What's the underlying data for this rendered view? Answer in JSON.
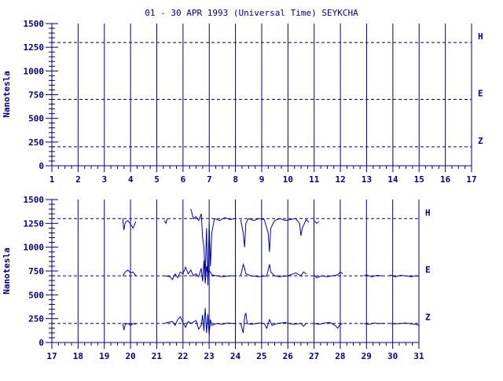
{
  "chart_data": [
    {
      "type": "line",
      "title": "01 - 30 APR 1993 (Universal Time) SEYKCHA",
      "ylabel": "Nanotesla",
      "xlim": [
        1,
        17
      ],
      "ylim": [
        0,
        1500
      ],
      "x_ticks": [
        "1",
        "2",
        "3",
        "4",
        "5",
        "6",
        "7",
        "8",
        "9",
        "10",
        "11",
        "12",
        "13",
        "14",
        "15",
        "16",
        "17"
      ],
      "y_ticks": [
        "0",
        "250",
        "500",
        "750",
        "1000",
        "1250",
        "1500"
      ],
      "baselines": [
        {
          "name": "H",
          "value": 1300
        },
        {
          "name": "E",
          "value": 700
        },
        {
          "name": "Z",
          "value": 200
        }
      ],
      "grid": true,
      "series": []
    },
    {
      "type": "line",
      "ylabel": "Nanotesla",
      "xlim": [
        17,
        31
      ],
      "ylim": [
        0,
        1500
      ],
      "x_ticks": [
        "17",
        "18",
        "19",
        "20",
        "21",
        "22",
        "23",
        "24",
        "25",
        "26",
        "27",
        "28",
        "29",
        "30",
        "31"
      ],
      "y_ticks": [
        "0",
        "250",
        "500",
        "750",
        "1000",
        "1250",
        "1500"
      ],
      "baselines": [
        {
          "name": "H",
          "value": 1300
        },
        {
          "name": "E",
          "value": 700
        },
        {
          "name": "Z",
          "value": 200
        }
      ],
      "grid": true,
      "series": [
        {
          "name": "H",
          "segments": [
            [
              [
                19.7,
                1300
              ],
              [
                19.75,
                1180
              ],
              [
                19.8,
                1260
              ],
              [
                19.9,
                1280
              ],
              [
                20.0,
                1240
              ],
              [
                20.1,
                1200
              ],
              [
                20.2,
                1270
              ]
            ],
            [
              [
                21.3,
                1280
              ],
              [
                21.35,
                1250
              ],
              [
                21.4,
                1300
              ]
            ],
            [
              [
                22.3,
                1400
              ],
              [
                22.4,
                1300
              ],
              [
                22.5,
                1320
              ],
              [
                22.6,
                1280
              ],
              [
                22.7,
                1350
              ],
              [
                22.75,
                1100
              ],
              [
                22.8,
                1000
              ],
              [
                22.85,
                700
              ],
              [
                22.9,
                1200
              ],
              [
                22.95,
                600
              ],
              [
                23.0,
                1250
              ],
              [
                23.05,
                800
              ],
              [
                23.1,
                1150
              ],
              [
                23.2,
                1300
              ],
              [
                23.4,
                1280
              ],
              [
                23.6,
                1310
              ],
              [
                23.8,
                1290
              ],
              [
                24.0,
                1300
              ]
            ],
            [
              [
                24.2,
                1290
              ],
              [
                24.3,
                1150
              ],
              [
                24.35,
                1000
              ],
              [
                24.4,
                1250
              ],
              [
                24.5,
                1300
              ],
              [
                24.7,
                1280
              ],
              [
                24.9,
                1300
              ],
              [
                25.1,
                1290
              ],
              [
                25.25,
                1150
              ],
              [
                25.3,
                950
              ],
              [
                25.35,
                1200
              ],
              [
                25.5,
                1280
              ],
              [
                25.7,
                1300
              ],
              [
                25.9,
                1280
              ],
              [
                26.1,
                1290
              ],
              [
                26.3,
                1300
              ],
              [
                26.45,
                1250
              ],
              [
                26.5,
                1120
              ],
              [
                26.55,
                1200
              ],
              [
                26.7,
                1290
              ],
              [
                26.8,
                1260
              ]
            ],
            [
              [
                27.0,
                1280
              ],
              [
                27.1,
                1250
              ],
              [
                27.2,
                1270
              ]
            ]
          ]
        },
        {
          "name": "E",
          "segments": [
            [
              [
                19.7,
                700
              ],
              [
                19.75,
                720
              ],
              [
                19.8,
                740
              ],
              [
                19.9,
                760
              ],
              [
                20.0,
                730
              ],
              [
                20.1,
                740
              ],
              [
                20.2,
                700
              ]
            ],
            [
              [
                21.3,
                700
              ],
              [
                21.5,
                690
              ],
              [
                21.6,
                660
              ],
              [
                21.7,
                720
              ],
              [
                21.8,
                680
              ],
              [
                21.9,
                740
              ],
              [
                22.0,
                720
              ],
              [
                22.1,
                790
              ],
              [
                22.2,
                720
              ],
              [
                22.3,
                760
              ],
              [
                22.4,
                700
              ],
              [
                22.5,
                720
              ],
              [
                22.6,
                690
              ],
              [
                22.7,
                780
              ],
              [
                22.75,
                640
              ],
              [
                22.8,
                860
              ],
              [
                22.85,
                620
              ],
              [
                22.9,
                800
              ],
              [
                22.95,
                700
              ],
              [
                23.0,
                760
              ],
              [
                23.1,
                710
              ],
              [
                23.3,
                700
              ],
              [
                23.5,
                690
              ],
              [
                23.8,
                700
              ],
              [
                24.0,
                700
              ]
            ],
            [
              [
                24.2,
                700
              ],
              [
                24.3,
                820
              ],
              [
                24.35,
                780
              ],
              [
                24.4,
                720
              ],
              [
                24.6,
                700
              ],
              [
                24.9,
                690
              ],
              [
                25.2,
                700
              ],
              [
                25.3,
                820
              ],
              [
                25.35,
                740
              ],
              [
                25.5,
                700
              ],
              [
                25.7,
                690
              ],
              [
                26.0,
                700
              ],
              [
                26.3,
                730
              ],
              [
                26.5,
                700
              ],
              [
                26.6,
                740
              ],
              [
                26.7,
                720
              ]
            ],
            [
              [
                27.0,
                710
              ],
              [
                27.1,
                680
              ],
              [
                27.3,
                700
              ],
              [
                27.5,
                690
              ],
              [
                27.7,
                700
              ],
              [
                27.9,
                710
              ],
              [
                28.0,
                740
              ],
              [
                28.1,
                720
              ]
            ],
            [
              [
                28.9,
                700
              ],
              [
                29.0,
                710
              ],
              [
                29.2,
                690
              ],
              [
                29.4,
                705
              ],
              [
                29.6,
                700
              ]
            ],
            [
              [
                29.9,
                710
              ],
              [
                30.1,
                690
              ],
              [
                30.3,
                705
              ],
              [
                30.5,
                700
              ],
              [
                30.7,
                690
              ],
              [
                30.9,
                700
              ],
              [
                31.0,
                695
              ]
            ]
          ]
        },
        {
          "name": "Z",
          "segments": [
            [
              [
                19.7,
                200
              ],
              [
                19.75,
                130
              ],
              [
                19.8,
                190
              ],
              [
                19.9,
                200
              ],
              [
                20.0,
                180
              ],
              [
                20.1,
                200
              ],
              [
                20.2,
                190
              ]
            ],
            [
              [
                21.3,
                200
              ],
              [
                21.4,
                210
              ],
              [
                21.6,
                220
              ],
              [
                21.7,
                180
              ],
              [
                21.8,
                240
              ],
              [
                21.9,
                270
              ],
              [
                22.0,
                210
              ],
              [
                22.1,
                160
              ],
              [
                22.2,
                220
              ],
              [
                22.3,
                200
              ],
              [
                22.5,
                230
              ],
              [
                22.6,
                140
              ],
              [
                22.7,
                180
              ],
              [
                22.75,
                290
              ],
              [
                22.8,
                120
              ],
              [
                22.85,
                360
              ],
              [
                22.9,
                100
              ],
              [
                22.95,
                300
              ],
              [
                23.0,
                80
              ],
              [
                23.05,
                240
              ],
              [
                23.1,
                180
              ],
              [
                23.3,
                200
              ],
              [
                23.5,
                190
              ],
              [
                23.7,
                205
              ],
              [
                23.9,
                200
              ],
              [
                24.0,
                200
              ]
            ],
            [
              [
                24.2,
                200
              ],
              [
                24.3,
                100
              ],
              [
                24.35,
                270
              ],
              [
                24.4,
                310
              ],
              [
                24.45,
                200
              ],
              [
                24.6,
                190
              ],
              [
                24.9,
                205
              ],
              [
                25.1,
                200
              ],
              [
                25.2,
                150
              ],
              [
                25.3,
                240
              ],
              [
                25.4,
                180
              ],
              [
                25.6,
                200
              ],
              [
                25.9,
                210
              ],
              [
                26.2,
                190
              ],
              [
                26.5,
                200
              ],
              [
                26.6,
                170
              ],
              [
                26.7,
                200
              ]
            ],
            [
              [
                27.0,
                200
              ],
              [
                27.2,
                190
              ],
              [
                27.4,
                205
              ],
              [
                27.6,
                210
              ],
              [
                27.8,
                180
              ],
              [
                27.9,
                150
              ],
              [
                28.0,
                190
              ],
              [
                28.1,
                200
              ]
            ],
            [
              [
                28.9,
                200
              ],
              [
                29.1,
                190
              ],
              [
                29.3,
                205
              ],
              [
                29.5,
                200
              ],
              [
                29.7,
                200
              ]
            ],
            [
              [
                29.9,
                200
              ],
              [
                30.1,
                195
              ],
              [
                30.3,
                200
              ],
              [
                30.5,
                205
              ],
              [
                30.7,
                195
              ],
              [
                30.9,
                190
              ],
              [
                31.0,
                180
              ]
            ]
          ]
        }
      ]
    }
  ]
}
